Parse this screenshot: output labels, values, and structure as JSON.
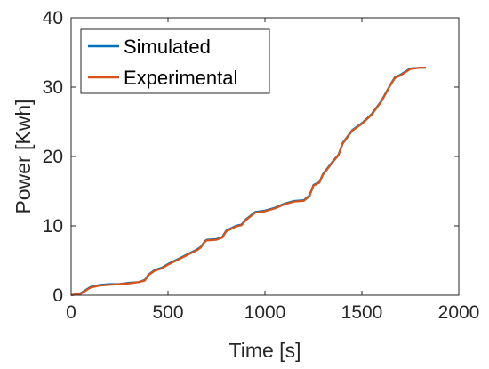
{
  "chart_data": {
    "type": "line",
    "title": "",
    "xlabel": "Time [s]",
    "ylabel": "Power [Kwh]",
    "xlim": [
      0,
      2000
    ],
    "ylim": [
      0,
      40
    ],
    "xticks": [
      "0",
      "500",
      "1000",
      "1500",
      "2000"
    ],
    "yticks": [
      "0",
      "10",
      "20",
      "30",
      "40"
    ],
    "xtick_values": [
      0,
      500,
      1000,
      1500,
      2000
    ],
    "ytick_values": [
      0,
      10,
      20,
      30,
      40
    ],
    "grid": false,
    "legend_position": "top-left",
    "series": [
      {
        "name": "Simulated",
        "color": "#0072BD",
        "x": [
          0,
          50,
          100,
          150,
          200,
          250,
          300,
          350,
          380,
          400,
          430,
          470,
          500,
          550,
          600,
          650,
          670,
          690,
          700,
          750,
          780,
          800,
          850,
          880,
          900,
          950,
          1000,
          1050,
          1100,
          1150,
          1200,
          1230,
          1250,
          1280,
          1300,
          1350,
          1380,
          1400,
          1450,
          1500,
          1550,
          1600,
          1650,
          1670,
          1700,
          1750,
          1800,
          1830
        ],
        "y": [
          0,
          0.3,
          1.2,
          1.5,
          1.6,
          1.6,
          1.8,
          1.9,
          2.2,
          3.0,
          3.6,
          4.0,
          4.5,
          5.2,
          5.9,
          6.6,
          7.0,
          7.8,
          8.0,
          8.1,
          8.4,
          9.3,
          10.0,
          10.2,
          10.9,
          12.0,
          12.2,
          12.6,
          13.2,
          13.6,
          13.7,
          14.4,
          15.9,
          16.3,
          17.5,
          19.3,
          20.3,
          21.9,
          23.8,
          24.8,
          26.1,
          28.0,
          30.5,
          31.4,
          31.8,
          32.7,
          32.8,
          32.8
        ]
      },
      {
        "name": "Experimental",
        "color": "#D95319",
        "x": [
          0,
          50,
          100,
          150,
          200,
          250,
          300,
          350,
          380,
          400,
          430,
          470,
          500,
          550,
          600,
          650,
          670,
          690,
          700,
          750,
          780,
          800,
          850,
          880,
          900,
          950,
          1000,
          1050,
          1100,
          1150,
          1200,
          1230,
          1250,
          1280,
          1300,
          1350,
          1380,
          1400,
          1450,
          1500,
          1550,
          1600,
          1650,
          1670,
          1700,
          1750,
          1800,
          1830
        ],
        "y": [
          0,
          0.2,
          1.1,
          1.4,
          1.5,
          1.6,
          1.7,
          1.9,
          2.1,
          2.9,
          3.5,
          3.9,
          4.4,
          5.1,
          5.8,
          6.5,
          6.9,
          7.7,
          7.9,
          8.0,
          8.3,
          9.2,
          9.9,
          10.1,
          10.8,
          11.9,
          12.1,
          12.5,
          13.1,
          13.5,
          13.6,
          14.3,
          15.8,
          16.2,
          17.4,
          19.2,
          20.2,
          21.8,
          23.7,
          24.7,
          26.0,
          27.9,
          30.4,
          31.3,
          31.7,
          32.6,
          32.8,
          32.8
        ]
      }
    ]
  }
}
